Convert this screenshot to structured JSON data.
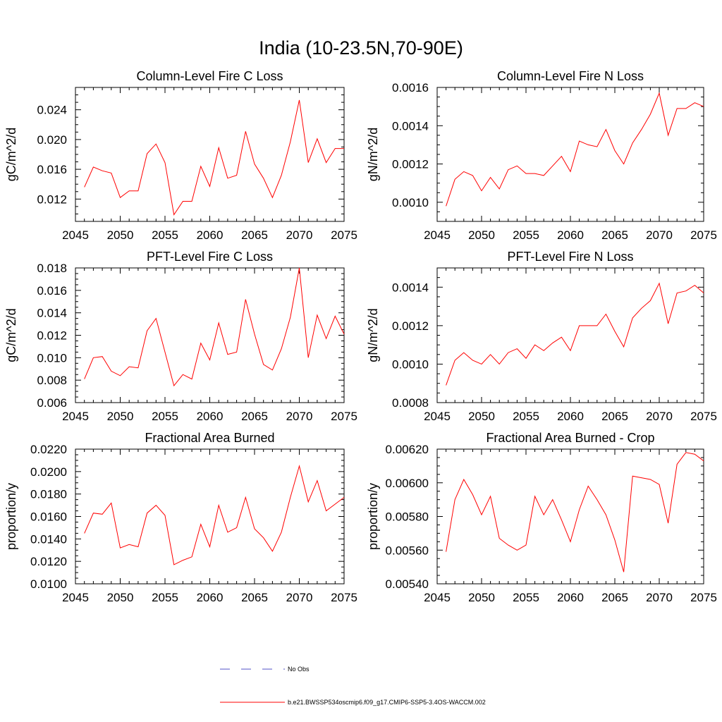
{
  "title": "India (10-23.5N,70-90E)",
  "colors": {
    "series": "#ff0000",
    "obs": "#5050c8",
    "axes": "#000000"
  },
  "legend": {
    "obs_label": "No Obs",
    "model_label": "b.e21.BWSSP534oscmip6.f09_g17.CMIP6-SSP5-3.4OS-WACCM.002"
  },
  "chart_data": [
    {
      "type": "line",
      "title": "Column-Level Fire C Loss",
      "ylabel": "gC/m^2/d",
      "xlim": [
        2045,
        2075
      ],
      "ylim": [
        0.009,
        0.027
      ],
      "xticks": [
        "2045",
        "2050",
        "2055",
        "2060",
        "2065",
        "2070",
        "2075"
      ],
      "yticks": [
        "0.012",
        "0.016",
        "0.020",
        "0.024"
      ],
      "x": [
        2046,
        2047,
        2048,
        2049,
        2050,
        2051,
        2052,
        2053,
        2054,
        2055,
        2056,
        2057,
        2058,
        2059,
        2060,
        2061,
        2062,
        2063,
        2064,
        2065,
        2066,
        2067,
        2068,
        2069,
        2070,
        2071,
        2072,
        2073,
        2074,
        2075
      ],
      "series": [
        {
          "name": "b.e21.BWSSP534oscmip6.f09_g17.CMIP6-SSP5-3.4OS-WACCM.002",
          "values": [
            0.0136,
            0.0163,
            0.0158,
            0.0155,
            0.0122,
            0.0131,
            0.0131,
            0.0181,
            0.0194,
            0.0169,
            0.0099,
            0.0117,
            0.0117,
            0.0164,
            0.0137,
            0.0189,
            0.0148,
            0.0152,
            0.0211,
            0.0167,
            0.0148,
            0.0122,
            0.0152,
            0.0197,
            0.0253,
            0.0169,
            0.0201,
            0.0169,
            0.0188,
            0.0188
          ]
        }
      ]
    },
    {
      "type": "line",
      "title": "Column-Level Fire N Loss",
      "ylabel": "gN/m^2/d",
      "xlim": [
        2045,
        2075
      ],
      "ylim": [
        0.0009,
        0.0016
      ],
      "xticks": [
        "2045",
        "2050",
        "2055",
        "2060",
        "2065",
        "2070",
        "2075"
      ],
      "yticks": [
        "0.0010",
        "0.0012",
        "0.0014",
        "0.0016"
      ],
      "x": [
        2046,
        2047,
        2048,
        2049,
        2050,
        2051,
        2052,
        2053,
        2054,
        2055,
        2056,
        2057,
        2058,
        2059,
        2060,
        2061,
        2062,
        2063,
        2064,
        2065,
        2066,
        2067,
        2068,
        2069,
        2070,
        2071,
        2072,
        2073,
        2074,
        2075
      ],
      "series": [
        {
          "name": "b.e21.BWSSP534oscmip6.f09_g17.CMIP6-SSP5-3.4OS-WACCM.002",
          "values": [
            0.00098,
            0.00112,
            0.00116,
            0.00114,
            0.00106,
            0.00113,
            0.00107,
            0.00117,
            0.00119,
            0.00115,
            0.00115,
            0.00114,
            0.00119,
            0.00124,
            0.00116,
            0.00132,
            0.0013,
            0.00129,
            0.00138,
            0.00127,
            0.0012,
            0.00131,
            0.00138,
            0.00146,
            0.00157,
            0.00135,
            0.00149,
            0.00149,
            0.00152,
            0.0015
          ]
        }
      ]
    },
    {
      "type": "line",
      "title": "PFT-Level Fire C Loss",
      "ylabel": "gC/m^2/d",
      "xlim": [
        2045,
        2075
      ],
      "ylim": [
        0.006,
        0.018
      ],
      "xticks": [
        "2045",
        "2050",
        "2055",
        "2060",
        "2065",
        "2070",
        "2075"
      ],
      "yticks": [
        "0.006",
        "0.008",
        "0.010",
        "0.012",
        "0.014",
        "0.016",
        "0.018"
      ],
      "x": [
        2046,
        2047,
        2048,
        2049,
        2050,
        2051,
        2052,
        2053,
        2054,
        2055,
        2056,
        2057,
        2058,
        2059,
        2060,
        2061,
        2062,
        2063,
        2064,
        2065,
        2066,
        2067,
        2068,
        2069,
        2070,
        2071,
        2072,
        2073,
        2074,
        2075
      ],
      "series": [
        {
          "name": "b.e21.BWSSP534oscmip6.f09_g17.CMIP6-SSP5-3.4OS-WACCM.002",
          "values": [
            0.0081,
            0.01,
            0.0101,
            0.0088,
            0.0084,
            0.0092,
            0.0091,
            0.0124,
            0.0135,
            0.0105,
            0.0075,
            0.0085,
            0.0081,
            0.0113,
            0.0098,
            0.0131,
            0.0103,
            0.0105,
            0.0152,
            0.0121,
            0.0094,
            0.0089,
            0.0108,
            0.0136,
            0.018,
            0.01,
            0.0138,
            0.0117,
            0.0137,
            0.0121
          ]
        }
      ]
    },
    {
      "type": "line",
      "title": "PFT-Level Fire N Loss",
      "ylabel": "gN/m^2/d",
      "xlim": [
        2045,
        2075
      ],
      "ylim": [
        0.0008,
        0.0015
      ],
      "xticks": [
        "2045",
        "2050",
        "2055",
        "2060",
        "2065",
        "2070",
        "2075"
      ],
      "yticks": [
        "0.0008",
        "0.0010",
        "0.0012",
        "0.0014"
      ],
      "x": [
        2046,
        2047,
        2048,
        2049,
        2050,
        2051,
        2052,
        2053,
        2054,
        2055,
        2056,
        2057,
        2058,
        2059,
        2060,
        2061,
        2062,
        2063,
        2064,
        2065,
        2066,
        2067,
        2068,
        2069,
        2070,
        2071,
        2072,
        2073,
        2074,
        2075
      ],
      "series": [
        {
          "name": "b.e21.BWSSP534oscmip6.f09_g17.CMIP6-SSP5-3.4OS-WACCM.002",
          "values": [
            0.00089,
            0.00102,
            0.00106,
            0.00102,
            0.001,
            0.00105,
            0.001,
            0.00106,
            0.00108,
            0.00103,
            0.0011,
            0.00107,
            0.00111,
            0.00114,
            0.00107,
            0.0012,
            0.0012,
            0.0012,
            0.00126,
            0.00117,
            0.00109,
            0.00124,
            0.00129,
            0.00133,
            0.00142,
            0.00121,
            0.00137,
            0.00138,
            0.00141,
            0.00137
          ]
        }
      ]
    },
    {
      "type": "line",
      "title": "Fractional Area Burned",
      "ylabel": "proportion/y",
      "xlim": [
        2045,
        2075
      ],
      "ylim": [
        0.01,
        0.022
      ],
      "xticks": [
        "2045",
        "2050",
        "2055",
        "2060",
        "2065",
        "2070",
        "2075"
      ],
      "yticks": [
        "0.0100",
        "0.0120",
        "0.0140",
        "0.0160",
        "0.0180",
        "0.0200",
        "0.0220"
      ],
      "x": [
        2046,
        2047,
        2048,
        2049,
        2050,
        2051,
        2052,
        2053,
        2054,
        2055,
        2056,
        2057,
        2058,
        2059,
        2060,
        2061,
        2062,
        2063,
        2064,
        2065,
        2066,
        2067,
        2068,
        2069,
        2070,
        2071,
        2072,
        2073,
        2074,
        2075
      ],
      "series": [
        {
          "name": "b.e21.BWSSP534oscmip6.f09_g17.CMIP6-SSP5-3.4OS-WACCM.002",
          "values": [
            0.0145,
            0.0163,
            0.0162,
            0.0172,
            0.0132,
            0.0135,
            0.0133,
            0.0163,
            0.017,
            0.0161,
            0.0117,
            0.0121,
            0.0124,
            0.0153,
            0.0133,
            0.017,
            0.0146,
            0.015,
            0.0177,
            0.0149,
            0.0141,
            0.0129,
            0.0146,
            0.0177,
            0.0205,
            0.0173,
            0.0192,
            0.0165,
            0.0171,
            0.0177
          ]
        }
      ]
    },
    {
      "type": "line",
      "title": "Fractional Area Burned - Crop",
      "ylabel": "proportion/y",
      "xlim": [
        2045,
        2075
      ],
      "ylim": [
        0.0054,
        0.0062
      ],
      "xticks": [
        "2045",
        "2050",
        "2055",
        "2060",
        "2065",
        "2070",
        "2075"
      ],
      "yticks": [
        "0.00540",
        "0.00560",
        "0.00580",
        "0.00600",
        "0.00620"
      ],
      "x": [
        2046,
        2047,
        2048,
        2049,
        2050,
        2051,
        2052,
        2053,
        2054,
        2055,
        2056,
        2057,
        2058,
        2059,
        2060,
        2061,
        2062,
        2063,
        2064,
        2065,
        2066,
        2067,
        2068,
        2069,
        2070,
        2071,
        2072,
        2073,
        2074,
        2075
      ],
      "series": [
        {
          "name": "b.e21.BWSSP534oscmip6.f09_g17.CMIP6-SSP5-3.4OS-WACCM.002",
          "values": [
            0.00559,
            0.0059,
            0.00602,
            0.00593,
            0.00581,
            0.00592,
            0.00567,
            0.00563,
            0.0056,
            0.00563,
            0.00592,
            0.00581,
            0.0059,
            0.00578,
            0.00565,
            0.00584,
            0.00598,
            0.0059,
            0.00581,
            0.00566,
            0.00547,
            0.00604,
            0.00603,
            0.00602,
            0.00599,
            0.00576,
            0.00611,
            0.00618,
            0.00617,
            0.00613
          ]
        }
      ]
    }
  ]
}
